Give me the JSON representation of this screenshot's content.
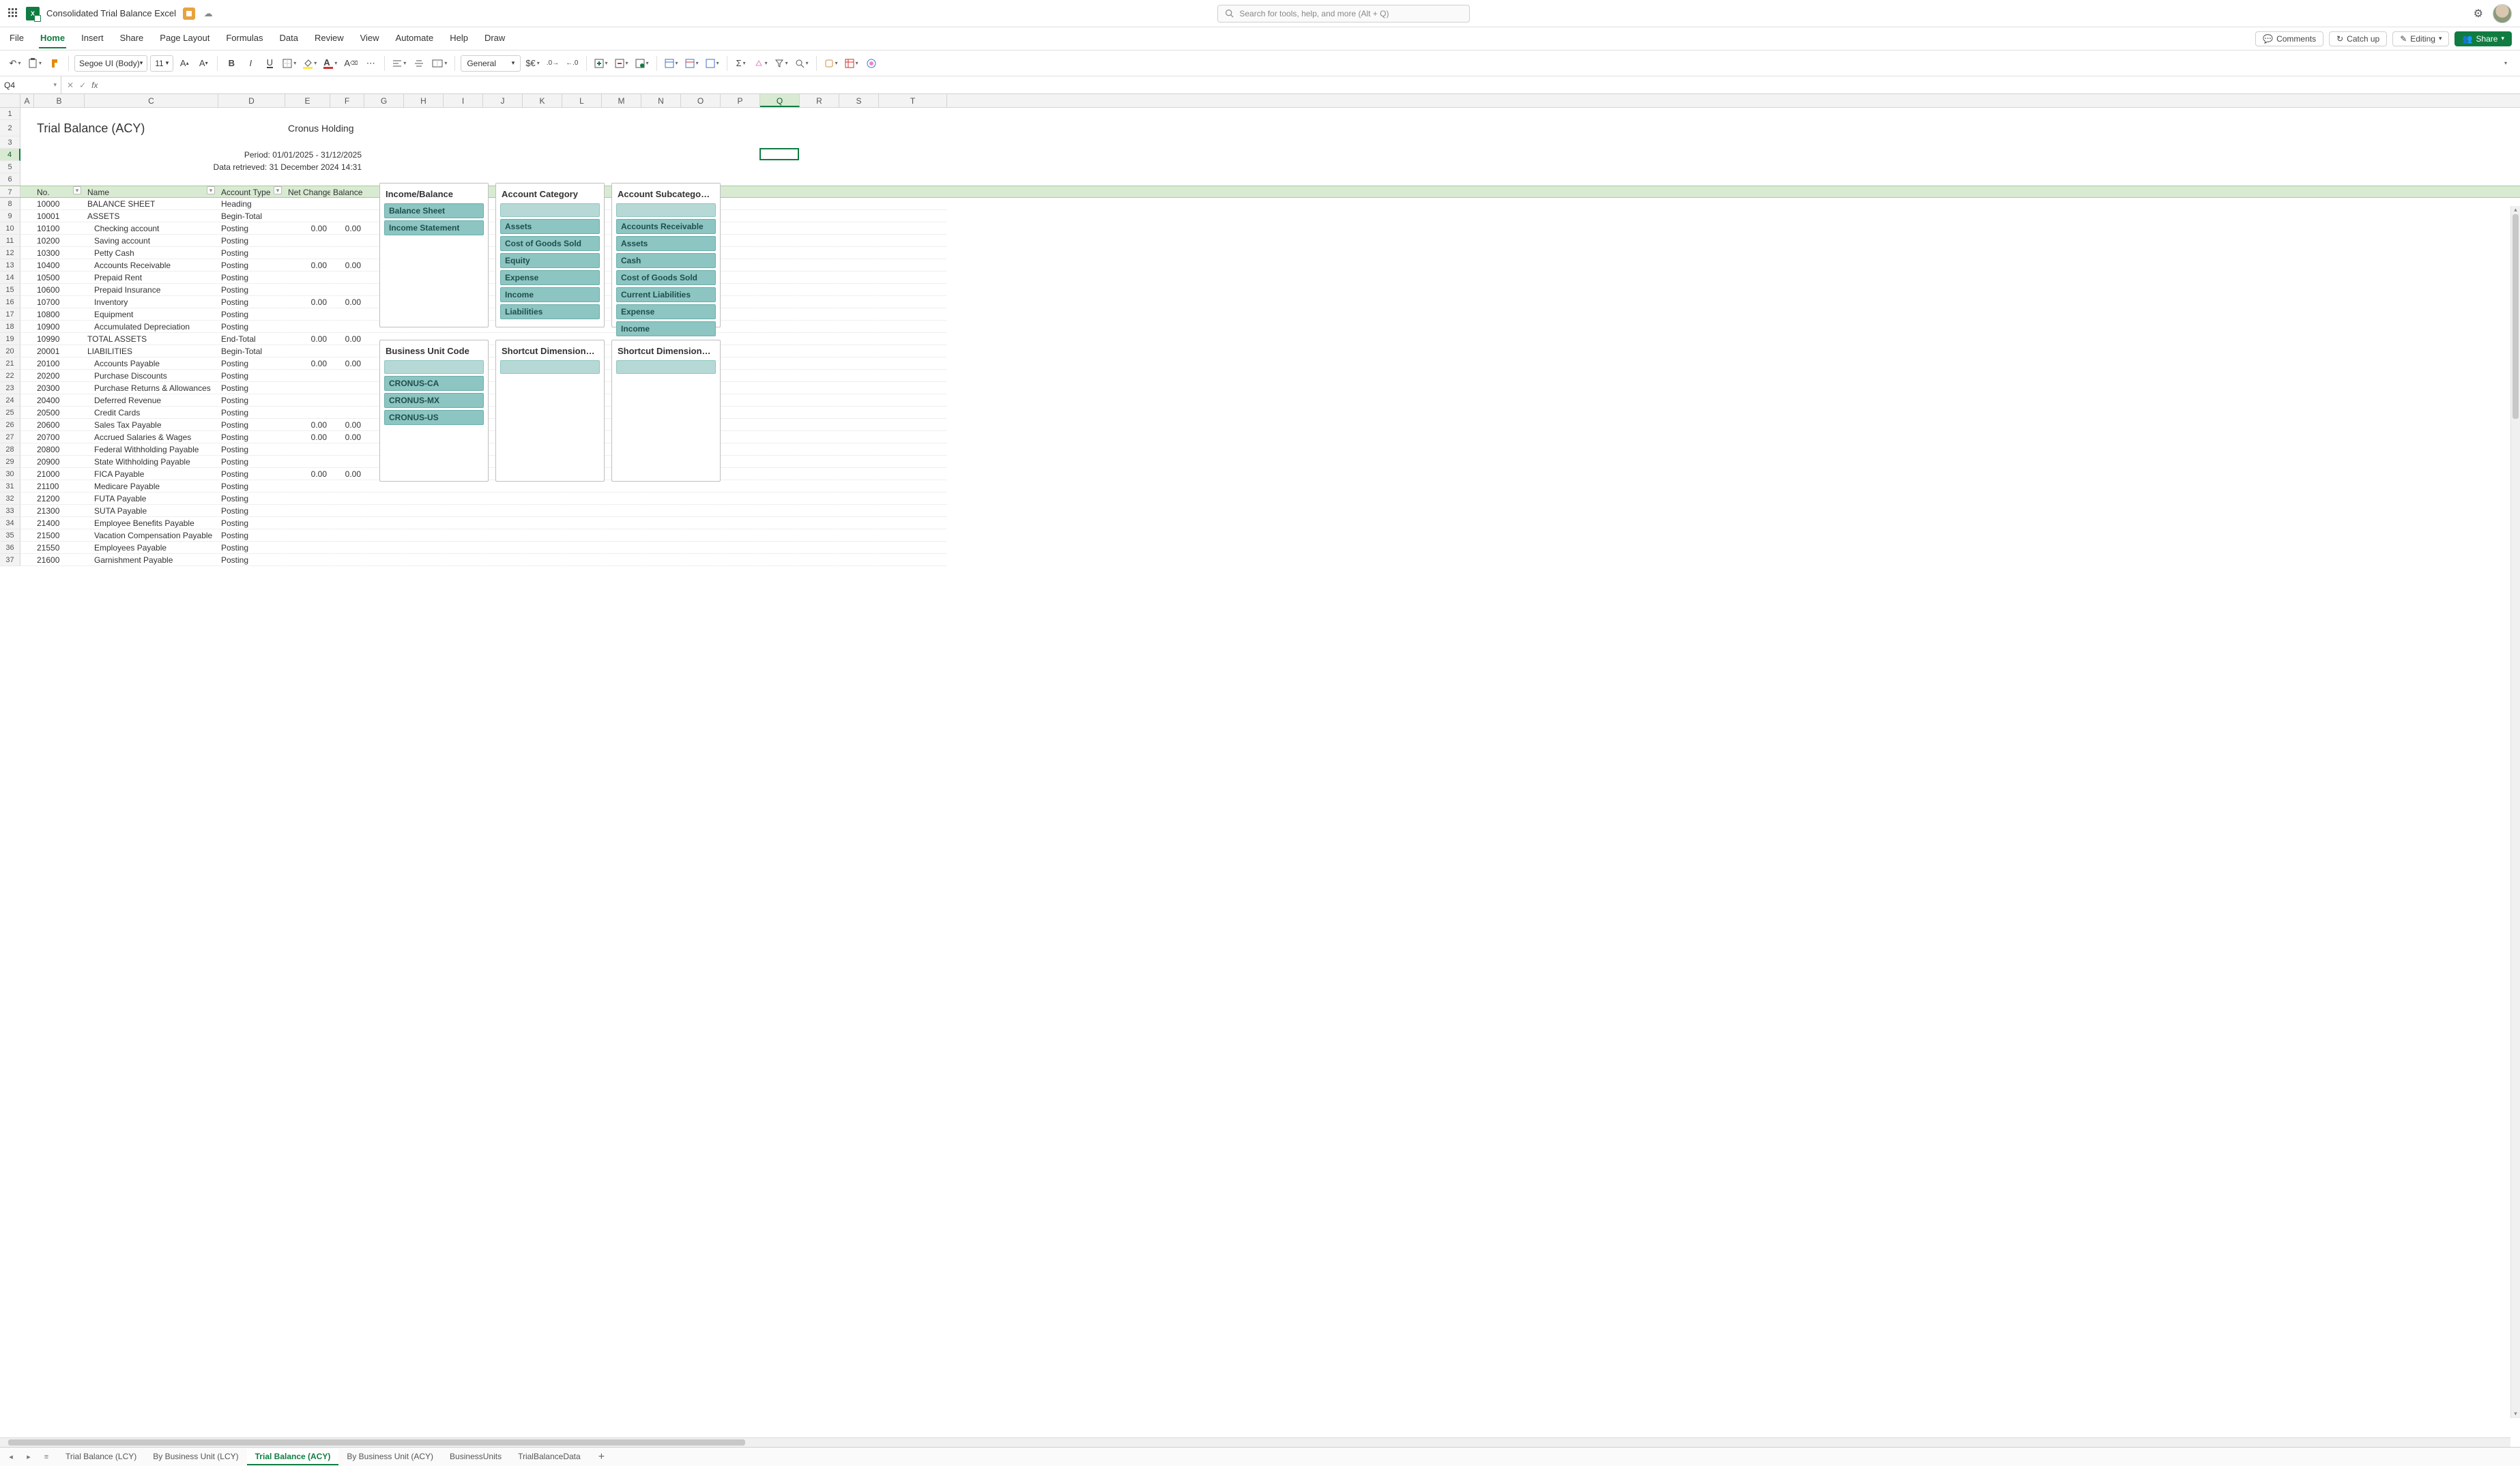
{
  "titlebar": {
    "doc_name": "Consolidated Trial Balance Excel",
    "search_placeholder": "Search for tools, help, and more (Alt + Q)"
  },
  "menubar": {
    "items": [
      "File",
      "Home",
      "Insert",
      "Share",
      "Page Layout",
      "Formulas",
      "Data",
      "Review",
      "View",
      "Automate",
      "Help",
      "Draw"
    ],
    "active_index": 1,
    "right": {
      "comments": "Comments",
      "catchup": "Catch up",
      "editing": "Editing",
      "share": "Share"
    }
  },
  "toolbar": {
    "font_name": "Segoe UI (Body)",
    "font_size": "11",
    "number_format": "General",
    "colors": {
      "highlight": "#ffeb3b",
      "font": "#d32f2f"
    }
  },
  "namebox": {
    "ref": "Q4"
  },
  "columns": [
    "A",
    "B",
    "C",
    "D",
    "E",
    "F",
    "G",
    "H",
    "I",
    "J",
    "K",
    "L",
    "M",
    "N",
    "O",
    "P",
    "Q",
    "R",
    "S",
    "T"
  ],
  "active_col_index": 16,
  "active_row": 4,
  "sheet": {
    "title": "Trial Balance (ACY)",
    "company": "Cronus Holding",
    "period": "Period: 01/01/2025 - 31/12/2025",
    "retrieved": "Data retrieved: 31 December 2024 14:31",
    "headers": {
      "no": "No.",
      "name": "Name",
      "type": "Account Type",
      "net": "Net Change",
      "bal": "Balance"
    },
    "rows": [
      {
        "no": "10000",
        "name": "BALANCE SHEET",
        "type": "Heading",
        "net": "",
        "bal": "",
        "indent": 0
      },
      {
        "no": "10001",
        "name": "ASSETS",
        "type": "Begin-Total",
        "net": "",
        "bal": "",
        "indent": 0
      },
      {
        "no": "10100",
        "name": "Checking account",
        "type": "Posting",
        "net": "0.00",
        "bal": "0.00",
        "indent": 1
      },
      {
        "no": "10200",
        "name": "Saving account",
        "type": "Posting",
        "net": "",
        "bal": "",
        "indent": 1
      },
      {
        "no": "10300",
        "name": "Petty Cash",
        "type": "Posting",
        "net": "",
        "bal": "",
        "indent": 1
      },
      {
        "no": "10400",
        "name": "Accounts Receivable",
        "type": "Posting",
        "net": "0.00",
        "bal": "0.00",
        "indent": 1
      },
      {
        "no": "10500",
        "name": "Prepaid Rent",
        "type": "Posting",
        "net": "",
        "bal": "",
        "indent": 1
      },
      {
        "no": "10600",
        "name": "Prepaid Insurance",
        "type": "Posting",
        "net": "",
        "bal": "",
        "indent": 1
      },
      {
        "no": "10700",
        "name": "Inventory",
        "type": "Posting",
        "net": "0.00",
        "bal": "0.00",
        "indent": 1
      },
      {
        "no": "10800",
        "name": "Equipment",
        "type": "Posting",
        "net": "",
        "bal": "",
        "indent": 1
      },
      {
        "no": "10900",
        "name": "Accumulated Depreciation",
        "type": "Posting",
        "net": "",
        "bal": "",
        "indent": 1
      },
      {
        "no": "10990",
        "name": "TOTAL ASSETS",
        "type": "End-Total",
        "net": "0.00",
        "bal": "0.00",
        "indent": 0
      },
      {
        "no": "20001",
        "name": "LIABILITIES",
        "type": "Begin-Total",
        "net": "",
        "bal": "",
        "indent": 0
      },
      {
        "no": "20100",
        "name": "Accounts Payable",
        "type": "Posting",
        "net": "0.00",
        "bal": "0.00",
        "indent": 1
      },
      {
        "no": "20200",
        "name": "Purchase Discounts",
        "type": "Posting",
        "net": "",
        "bal": "",
        "indent": 1
      },
      {
        "no": "20300",
        "name": "Purchase Returns & Allowances",
        "type": "Posting",
        "net": "",
        "bal": "",
        "indent": 1
      },
      {
        "no": "20400",
        "name": "Deferred Revenue",
        "type": "Posting",
        "net": "",
        "bal": "",
        "indent": 1
      },
      {
        "no": "20500",
        "name": "Credit Cards",
        "type": "Posting",
        "net": "",
        "bal": "",
        "indent": 1
      },
      {
        "no": "20600",
        "name": "Sales Tax Payable",
        "type": "Posting",
        "net": "0.00",
        "bal": "0.00",
        "indent": 1
      },
      {
        "no": "20700",
        "name": "Accrued Salaries & Wages",
        "type": "Posting",
        "net": "0.00",
        "bal": "0.00",
        "indent": 1
      },
      {
        "no": "20800",
        "name": "Federal Withholding Payable",
        "type": "Posting",
        "net": "",
        "bal": "",
        "indent": 1
      },
      {
        "no": "20900",
        "name": "State Withholding Payable",
        "type": "Posting",
        "net": "",
        "bal": "",
        "indent": 1
      },
      {
        "no": "21000",
        "name": "FICA Payable",
        "type": "Posting",
        "net": "0.00",
        "bal": "0.00",
        "indent": 1
      },
      {
        "no": "21100",
        "name": "Medicare Payable",
        "type": "Posting",
        "net": "",
        "bal": "",
        "indent": 1
      },
      {
        "no": "21200",
        "name": "FUTA Payable",
        "type": "Posting",
        "net": "",
        "bal": "",
        "indent": 1
      },
      {
        "no": "21300",
        "name": "SUTA Payable",
        "type": "Posting",
        "net": "",
        "bal": "",
        "indent": 1
      },
      {
        "no": "21400",
        "name": "Employee Benefits Payable",
        "type": "Posting",
        "net": "",
        "bal": "",
        "indent": 1
      },
      {
        "no": "21500",
        "name": "Vacation Compensation Payable",
        "type": "Posting",
        "net": "",
        "bal": "",
        "indent": 1
      },
      {
        "no": "21550",
        "name": "Employees Payable",
        "type": "Posting",
        "net": "",
        "bal": "",
        "indent": 1
      },
      {
        "no": "21600",
        "name": "Garnishment Payable",
        "type": "Posting",
        "net": "",
        "bal": "",
        "indent": 1
      }
    ]
  },
  "slicers": {
    "income_balance": {
      "title": "Income/Balance",
      "items": [
        "Balance Sheet",
        "Income Statement"
      ]
    },
    "account_category": {
      "title": "Account Category",
      "items": [
        "",
        "Assets",
        "Cost of Goods Sold",
        "Equity",
        "Expense",
        "Income",
        "Liabilities"
      ]
    },
    "account_subcategory": {
      "title": "Account Subcatego…",
      "items": [
        "",
        "Accounts Receivable",
        "Assets",
        "Cash",
        "Cost of Goods Sold",
        "Current Liabilities",
        "Expense",
        "Income"
      ]
    },
    "business_unit": {
      "title": "Business Unit Code",
      "items": [
        "",
        "CRONUS-CA",
        "CRONUS-MX",
        "CRONUS-US"
      ]
    },
    "shortcut1": {
      "title": "Shortcut Dimension…",
      "items": [
        ""
      ]
    },
    "shortcut2": {
      "title": "Shortcut Dimension…",
      "items": [
        ""
      ]
    }
  },
  "tabs": {
    "items": [
      "Trial Balance (LCY)",
      "By Business Unit (LCY)",
      "Trial Balance (ACY)",
      "By Business Unit (ACY)",
      "BusinessUnits",
      "TrialBalanceData"
    ],
    "active_index": 2
  },
  "style": {
    "slicer_item_bg": "#8cc5c2",
    "slicer_item_light_bg": "#b6d9d6",
    "table_header_bg": "#d9ead3",
    "accent_green": "#107c41"
  }
}
